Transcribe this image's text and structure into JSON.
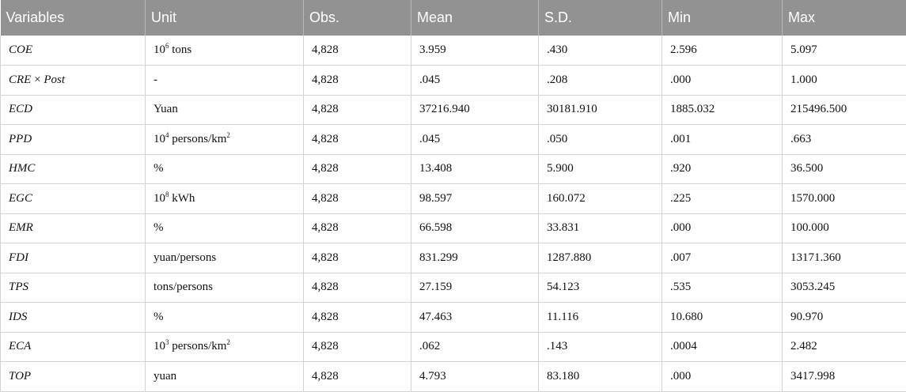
{
  "headers": [
    "Variables",
    "Unit",
    "Obs.",
    "Mean",
    "S.D.",
    "Min",
    "Max"
  ],
  "rows": [
    {
      "variable": "COE",
      "unit_pre": "10",
      "unit_sup": "6",
      "unit_post": " tons",
      "obs": "4,828",
      "mean": "3.959",
      "sd": ".430",
      "min": "2.596",
      "max": "5.097"
    },
    {
      "variable_a": "CRE",
      "variable_op": " × ",
      "variable_b": "Post",
      "unit": "-",
      "obs": "4,828",
      "mean": ".045",
      "sd": ".208",
      "min": ".000",
      "max": "1.000"
    },
    {
      "variable": "ECD",
      "unit": "Yuan",
      "obs": "4,828",
      "mean": "37216.940",
      "sd": "30181.910",
      "min": "1885.032",
      "max": "215496.500"
    },
    {
      "variable": "PPD",
      "unit_pre": "10",
      "unit_sup": "4",
      "unit_post": " persons/km",
      "unit_post_sup": "2",
      "obs": "4,828",
      "mean": ".045",
      "sd": ".050",
      "min": ".001",
      "max": ".663"
    },
    {
      "variable": "HMC",
      "unit": "%",
      "obs": "4,828",
      "mean": "13.408",
      "sd": "5.900",
      "min": ".920",
      "max": "36.500"
    },
    {
      "variable": "EGC",
      "unit_pre": "10",
      "unit_sup": "8",
      "unit_post": " kWh",
      "obs": "4,828",
      "mean": "98.597",
      "sd": "160.072",
      "min": ".225",
      "max": "1570.000"
    },
    {
      "variable": "EMR",
      "unit": "%",
      "obs": "4,828",
      "mean": "66.598",
      "sd": "33.831",
      "min": ".000",
      "max": "100.000"
    },
    {
      "variable": "FDI",
      "unit": "yuan/persons",
      "obs": "4,828",
      "mean": "831.299",
      "sd": "1287.880",
      "min": ".007",
      "max": "13171.360"
    },
    {
      "variable": "TPS",
      "unit": "tons/persons",
      "obs": "4,828",
      "mean": "27.159",
      "sd": "54.123",
      "min": ".535",
      "max": "3053.245"
    },
    {
      "variable": "IDS",
      "unit": "%",
      "obs": "4,828",
      "mean": "47.463",
      "sd": "11.116",
      "min": "10.680",
      "max": "90.970"
    },
    {
      "variable": "ECA",
      "unit_pre": "10",
      "unit_sup": "3",
      "unit_post": " persons/km",
      "unit_post_sup": "2",
      "obs": "4,828",
      "mean": ".062",
      "sd": ".143",
      "min": ".0004",
      "max": "2.482"
    },
    {
      "variable": "TOP",
      "unit": "yuan",
      "obs": "4,828",
      "mean": "4.793",
      "sd": "83.180",
      "min": ".000",
      "max": "3417.998"
    }
  ]
}
